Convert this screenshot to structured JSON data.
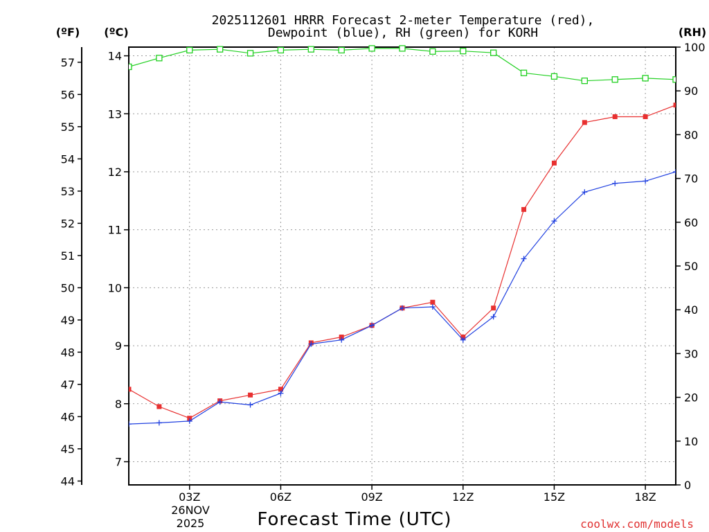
{
  "chart_data": {
    "type": "line",
    "title_line1": "2025112601 HRRR Forecast 2-meter Temperature (red),",
    "title_line2": "Dewpoint (blue), RH (green) for KORH",
    "xlabel": "Forecast Time (UTC)",
    "credit": "coolwx.com/models",
    "left_outer_unit": "(ºF)",
    "left_inner_unit": "(ºC)",
    "right_unit": "(RH)",
    "x_hours": [
      1,
      2,
      3,
      4,
      5,
      6,
      7,
      8,
      9,
      10,
      11,
      12,
      13,
      14,
      15,
      16,
      17,
      18,
      19
    ],
    "x_ticks": [
      {
        "hour": 3,
        "label": "03Z"
      },
      {
        "hour": 6,
        "label": "06Z"
      },
      {
        "hour": 9,
        "label": "09Z"
      },
      {
        "hour": 12,
        "label": "12Z"
      },
      {
        "hour": 15,
        "label": "15Z"
      },
      {
        "hour": 18,
        "label": "18Z"
      }
    ],
    "date_label_line1": "26NOV",
    "date_label_line2": "2025",
    "xlim": [
      1,
      19
    ],
    "celsius_lim": [
      6.6,
      14.15
    ],
    "celsius_ticks": [
      7,
      8,
      9,
      10,
      11,
      12,
      13,
      14
    ],
    "fahrenheit_ticks": [
      44,
      45,
      46,
      47,
      48,
      49,
      50,
      51,
      52,
      53,
      54,
      55,
      56,
      57
    ],
    "rh_lim": [
      0,
      100
    ],
    "rh_ticks": [
      0,
      10,
      20,
      30,
      40,
      50,
      60,
      70,
      80,
      90,
      100
    ],
    "series": [
      {
        "name": "Temperature",
        "color": "#e83030",
        "marker": "filled-square",
        "axis": "celsius",
        "values": [
          8.25,
          7.95,
          7.75,
          8.05,
          8.15,
          8.25,
          9.05,
          9.15,
          9.35,
          9.65,
          9.75,
          9.15,
          9.65,
          11.35,
          12.15,
          12.85,
          12.95,
          12.95,
          13.15
        ]
      },
      {
        "name": "Dewpoint",
        "color": "#2040e0",
        "marker": "plus",
        "axis": "celsius",
        "values": [
          7.65,
          7.67,
          7.7,
          8.03,
          7.98,
          8.18,
          9.03,
          9.1,
          9.35,
          9.65,
          9.67,
          9.1,
          9.5,
          10.5,
          11.15,
          11.65,
          11.8,
          11.84,
          12.0
        ]
      },
      {
        "name": "RH",
        "color": "#20d020",
        "marker": "open-square",
        "axis": "rh",
        "values": [
          95.5,
          97.5,
          99.3,
          99.5,
          98.6,
          99.3,
          99.5,
          99.3,
          99.7,
          99.7,
          99.0,
          99.1,
          98.7,
          94.1,
          93.3,
          92.3,
          92.6,
          92.9,
          92.6
        ]
      }
    ]
  }
}
